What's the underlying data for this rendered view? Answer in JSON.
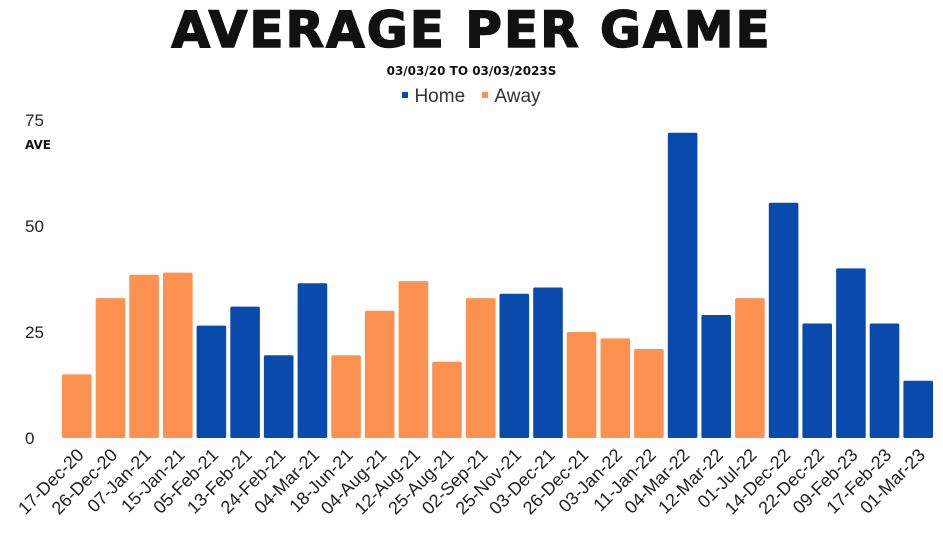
{
  "chart_data": {
    "type": "bar",
    "title": "AVERAGE PER GAME",
    "subtitle": "03/03/20 TO 03/03/2023S",
    "ylabel": "AVE",
    "xlabel": "",
    "ylim": [
      0,
      75
    ],
    "yticks": [
      "0",
      "25",
      "50",
      "75"
    ],
    "grid": false,
    "legend_position": "top-center",
    "series": [
      {
        "name": "Home",
        "color": "#0a4aad"
      },
      {
        "name": "Away",
        "color": "#fd9150"
      }
    ],
    "categories": [
      "17-Dec-20",
      "26-Dec-20",
      "07-Jan-21",
      "15-Jan-21",
      "05-Feb-21",
      "13-Feb-21",
      "24-Feb-21",
      "04-Mar-21",
      "18-Jun-21",
      "04-Aug-21",
      "12-Aug-21",
      "25-Aug-21",
      "02-Sep-21",
      "25-Nov-21",
      "03-Dec-21",
      "26-Dec-21",
      "03-Jan-22",
      "11-Jan-22",
      "04-Mar-22",
      "12-Mar-22",
      "01-Jul-22",
      "14-Dec-22",
      "22-Dec-22",
      "09-Feb-23",
      "17-Feb-23",
      "01-Mar-23"
    ],
    "values": [
      15,
      33,
      38.5,
      39,
      26.5,
      31,
      19.5,
      36.5,
      19.5,
      30,
      37,
      18,
      33,
      34,
      35.5,
      25,
      23.5,
      21,
      72,
      29,
      33,
      55.5,
      27,
      40,
      27,
      13.5
    ],
    "home_away": [
      "Away",
      "Away",
      "Away",
      "Away",
      "Home",
      "Home",
      "Home",
      "Home",
      "Away",
      "Away",
      "Away",
      "Away",
      "Away",
      "Home",
      "Home",
      "Away",
      "Away",
      "Away",
      "Home",
      "Home",
      "Away",
      "Home",
      "Home",
      "Home",
      "Home",
      "Home"
    ]
  }
}
